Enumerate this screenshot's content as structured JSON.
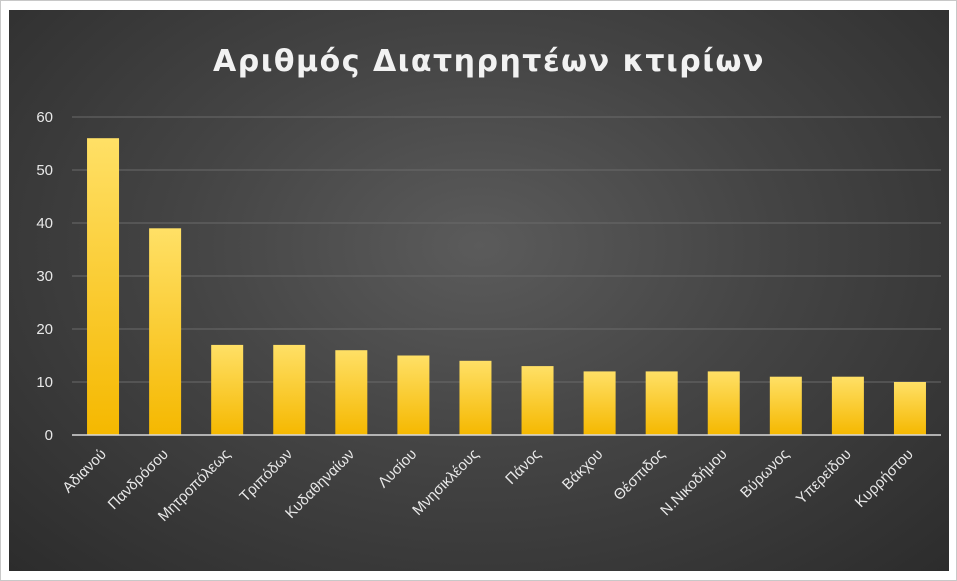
{
  "chart_data": {
    "type": "bar",
    "title": "Αριθμός  Διατηρητέων  κτιρίων",
    "xlabel": "",
    "ylabel": "",
    "categories": [
      "Αδιανού",
      "Πανδρόσου",
      "Μητροπόλεως",
      "Τριπόδων",
      "Κυδαθηναίων",
      "Λυσίου",
      "Μνησικλέους",
      "Πάνος",
      "Βάκχου",
      "Θέσπιδος",
      "Ν.Νικοδήμου",
      "Βύρωνος",
      "Υπερείδου",
      "Κυρρήστου"
    ],
    "values": [
      56,
      39,
      17,
      17,
      16,
      15,
      14,
      13,
      12,
      12,
      12,
      11,
      11,
      10
    ],
    "ylim": [
      0,
      60
    ],
    "yticks": [
      0,
      10,
      20,
      30,
      40,
      50,
      60
    ],
    "grid": true,
    "legend": "none",
    "colors": {
      "bar_top": "#ffe066",
      "bar_bottom": "#f5b800",
      "background_center": "#5b5b5b",
      "background_edge": "#2c2c2c",
      "gridline": "#6a6a6a",
      "text": "#f2f2f2"
    }
  }
}
